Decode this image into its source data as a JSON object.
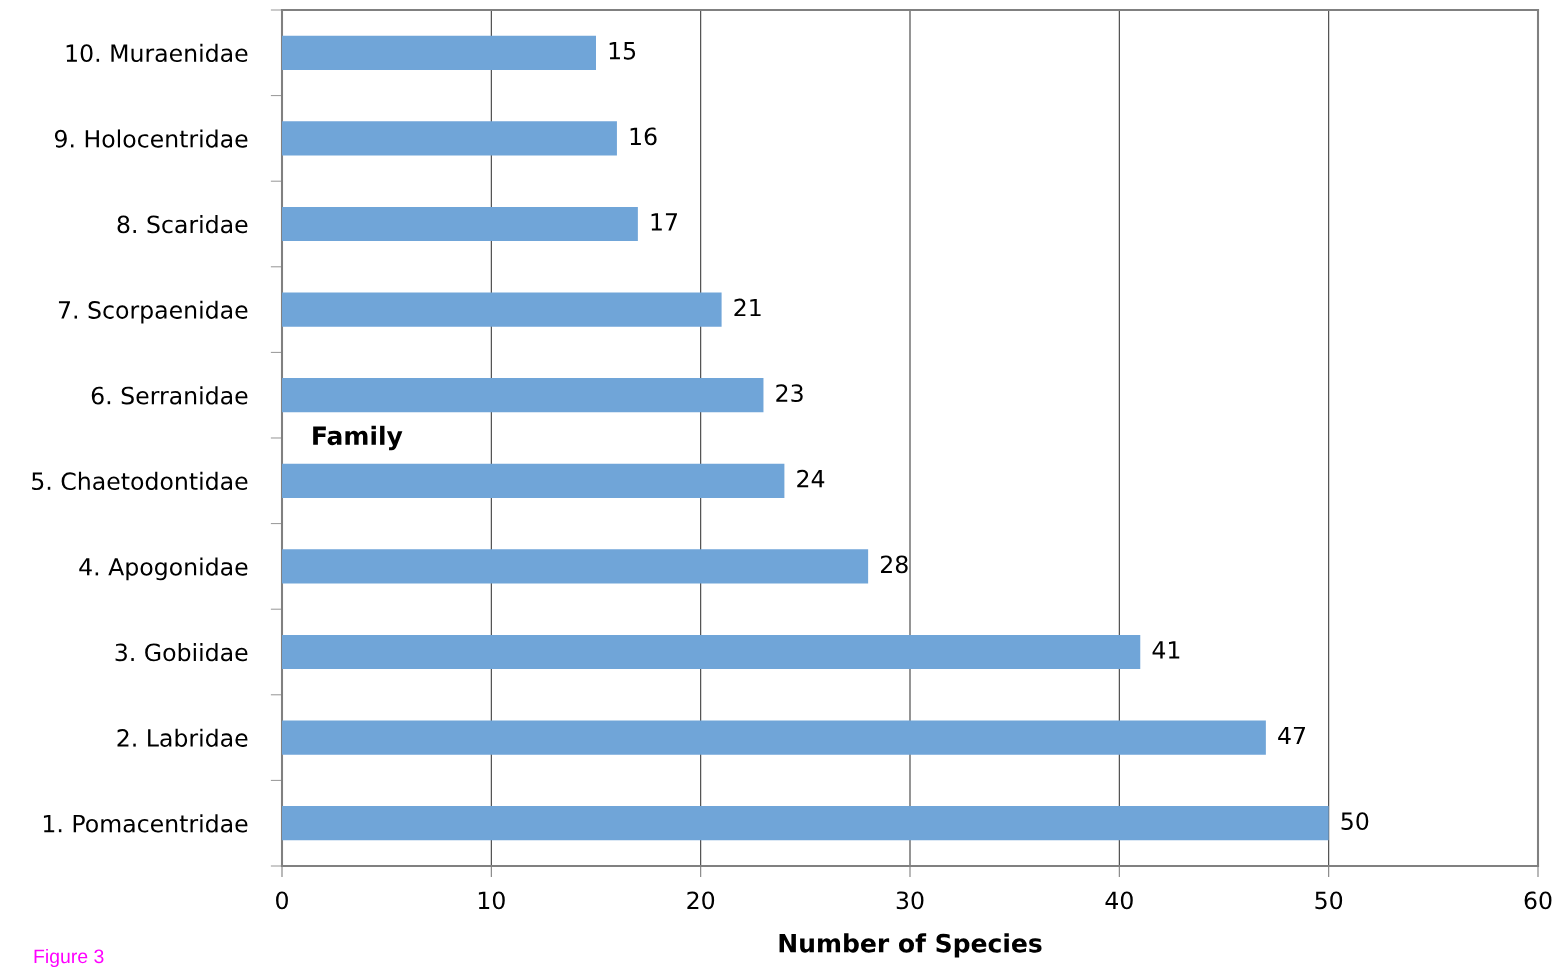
{
  "chart_data": {
    "type": "bar",
    "orientation": "horizontal",
    "categories": [
      "10. Muraenidae",
      "9. Holocentridae",
      "8. Scaridae",
      "7. Scorpaenidae",
      "6. Serranidae",
      "5. Chaetodontidae",
      "4. Apogonidae",
      "3. Gobiidae",
      "2. Labridae",
      "1. Pomacentridae"
    ],
    "values": [
      15,
      16,
      17,
      21,
      23,
      24,
      28,
      41,
      47,
      50
    ],
    "color": "#70a5d8",
    "xlim": [
      0,
      60
    ],
    "xticks": [
      0,
      10,
      20,
      30,
      40,
      50,
      60
    ],
    "xlabel": "Number of Species",
    "ylabel": "Family",
    "grid": "x",
    "data_labels": true,
    "annotations": [
      "Figure 3"
    ]
  }
}
